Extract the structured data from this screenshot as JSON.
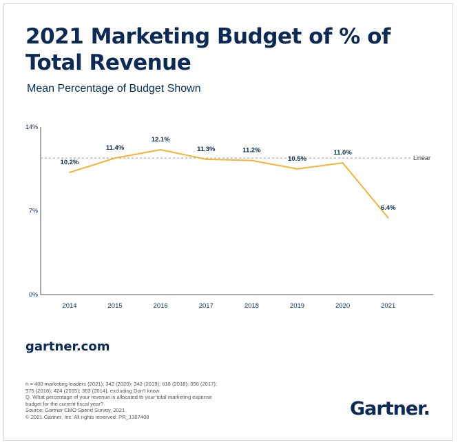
{
  "title": "2021 Marketing Budget of % of Total Revenue",
  "subtitle": "Mean Percentage of Budget Shown",
  "site": "gartner.com",
  "brand": "Gartner",
  "notes": [
    "n = 400 marketing leaders (2021); 342 (2020); 342 (2019); 618 (2018); 350 (2017);",
    "375 (2016); 424 (2015); 363 (2014), excluding Don't know",
    "Q. What percentage of your revenue is allocated to your total marketing expense",
    "budget for the current fiscal year?",
    "Source: Gartner CMO Spend Survey, 2021",
    "© 2021 Gartner, Inc. All rights reserved. PR_1387408"
  ],
  "colors": {
    "line": "#f5b335",
    "text": "#0b2a55",
    "linear": "#999999",
    "axis": "#555555"
  },
  "chart_data": {
    "type": "line",
    "categories": [
      "2014",
      "2015",
      "2016",
      "2017",
      "2018",
      "2019",
      "2020",
      "2021"
    ],
    "values": [
      10.2,
      11.4,
      12.1,
      11.3,
      11.2,
      10.5,
      11.0,
      6.4
    ],
    "data_labels": [
      "10.2%",
      "11.4%",
      "12.1%",
      "11.3%",
      "11.2%",
      "10.5%",
      "11.0%",
      "6.4%"
    ],
    "y_ticks": [
      {
        "value": 14,
        "label": "14%"
      },
      {
        "value": 7,
        "label": "7%"
      },
      {
        "value": 0,
        "label": "0%"
      }
    ],
    "ylim": [
      0,
      14
    ],
    "reference_line": {
      "value": 11.4,
      "label": "Linear"
    },
    "grid": false
  }
}
